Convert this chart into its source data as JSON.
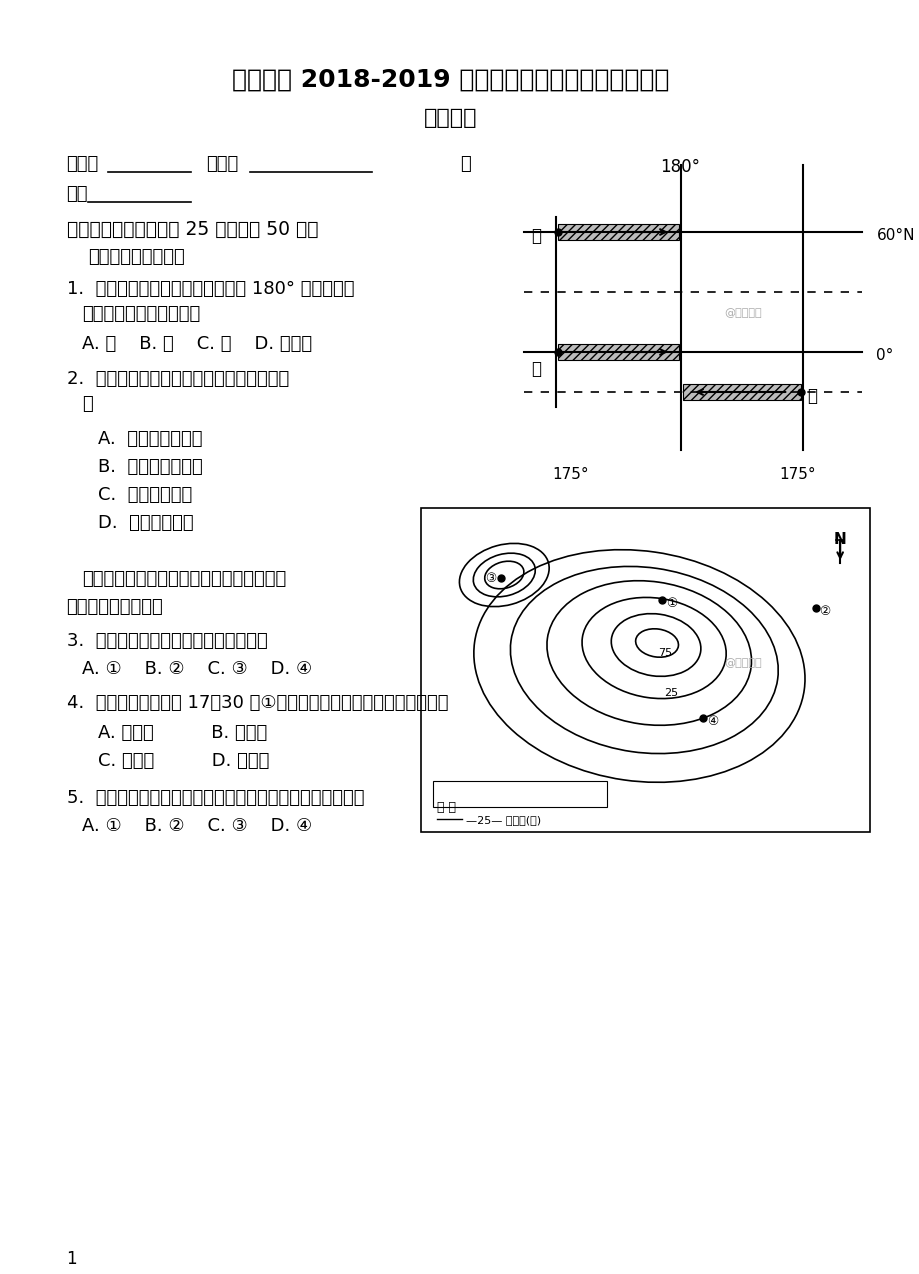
{
  "title1": "黄山一中 2018-2019 学年上学期高三年级第二次月考",
  "title2": "地理试卷",
  "bg_color": "#ffffff",
  "text_color": "#000000",
  "page_num": "1"
}
